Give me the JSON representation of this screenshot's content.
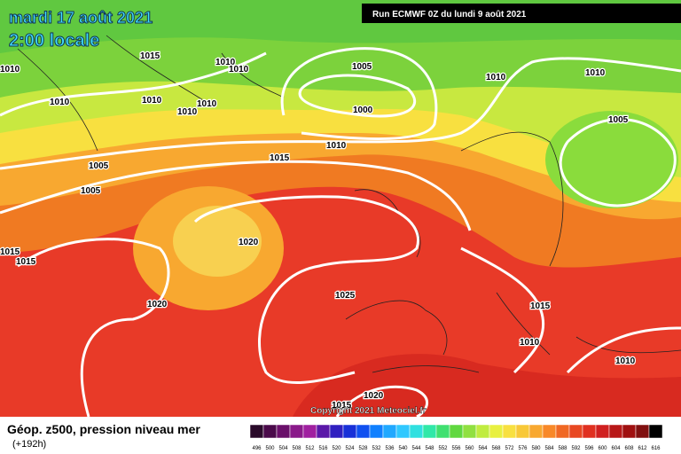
{
  "header": {
    "date": "mardi 17 août 2021",
    "time": "2:00 locale",
    "run": "Run ECMWF 0Z du lundi 9 août 2021"
  },
  "map": {
    "isobar_labels": [
      "1015",
      "1010",
      "1010",
      "1005",
      "1010",
      "1010",
      "1010",
      "1010",
      "1010",
      "1010",
      "1000",
      "1005",
      "1010",
      "1015",
      "1005",
      "1005",
      "1020",
      "1015",
      "1015",
      "1025",
      "1020",
      "1015",
      "1010",
      "1010",
      "1020",
      "1015",
      "1010"
    ]
  },
  "footer": {
    "title": "Géop. z500, pression niveau mer",
    "lead": "(+192h)",
    "copyright": "Copyright 2021 Meteociel.fr"
  },
  "legend": {
    "labels": [
      "496",
      "500",
      "504",
      "508",
      "512",
      "516",
      "520",
      "524",
      "528",
      "532",
      "536",
      "540",
      "544",
      "548",
      "552",
      "556",
      "560",
      "564",
      "568",
      "572",
      "576",
      "580",
      "584",
      "588",
      "592",
      "596",
      "600",
      "604",
      "608",
      "612",
      "616"
    ],
    "colors": [
      "#2a0a2a",
      "#4a0a4a",
      "#6a106a",
      "#8a1a8a",
      "#a020a0",
      "#5a18a8",
      "#3020c0",
      "#1830d8",
      "#1050f0",
      "#1080ff",
      "#20a8ff",
      "#30c8ff",
      "#30e0e0",
      "#30e8a8",
      "#40e070",
      "#60d840",
      "#90e040",
      "#c0ec40",
      "#e8f040",
      "#f8e040",
      "#f8c838",
      "#f8a830",
      "#f88828",
      "#f06824",
      "#e84822",
      "#e03020",
      "#d02020",
      "#b81818",
      "#a01010",
      "#801010",
      "#000000"
    ]
  }
}
